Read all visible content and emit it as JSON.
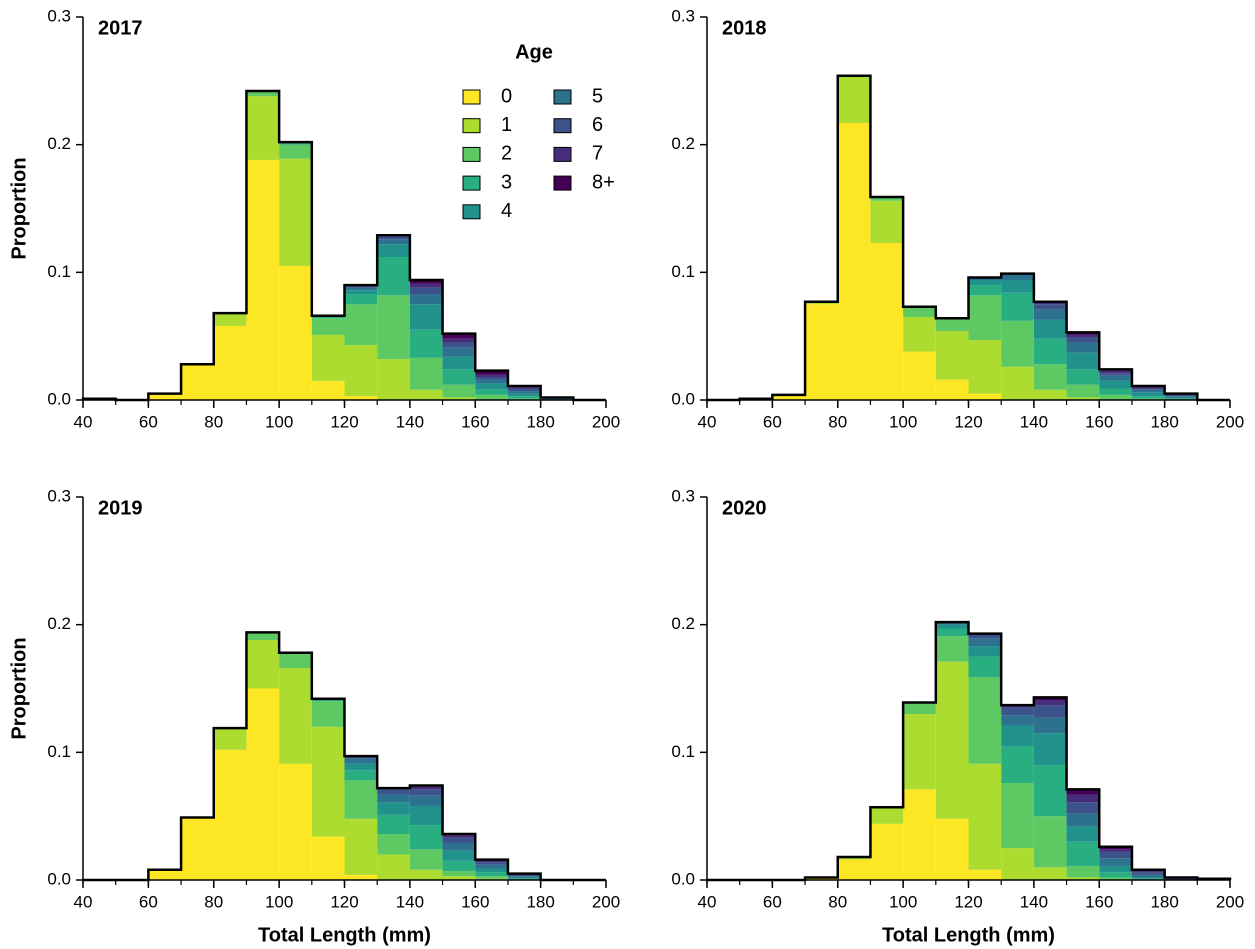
{
  "chart_data": [
    {
      "type": "histogram",
      "title": "2017",
      "ylabel": "Proportion",
      "legend": true,
      "legend_title": "Age",
      "bins": [
        40,
        50,
        60,
        70,
        80,
        90,
        100,
        110,
        120,
        130,
        140,
        150,
        160,
        170,
        180,
        190,
        200
      ],
      "xlim": [
        40,
        200
      ],
      "ylim": [
        0,
        0.3
      ],
      "xticks": [
        40,
        60,
        80,
        100,
        120,
        140,
        160,
        180,
        200
      ],
      "yticks": [
        {
          "value": 0,
          "label": "0.0"
        },
        0.1,
        0.2,
        0.3
      ],
      "series": [
        {
          "name": "0",
          "color": "#fde725",
          "values": [
            0.001,
            0,
            0.005,
            0.028,
            0.058,
            0.188,
            0.105,
            0.015,
            0.003,
            0,
            0,
            0,
            0,
            0,
            0,
            0
          ]
        },
        {
          "name": "1",
          "color": "#addc30",
          "values": [
            0,
            0,
            0,
            0,
            0.01,
            0.05,
            0.084,
            0.036,
            0.04,
            0.032,
            0.008,
            0.002,
            0,
            0,
            0,
            0
          ]
        },
        {
          "name": "2",
          "color": "#5ec962",
          "values": [
            0,
            0,
            0,
            0,
            0,
            0.004,
            0.011,
            0.013,
            0.032,
            0.05,
            0.025,
            0.01,
            0.004,
            0.001,
            0,
            0
          ]
        },
        {
          "name": "3",
          "color": "#28ae80",
          "values": [
            0,
            0,
            0,
            0,
            0,
            0,
            0.002,
            0.002,
            0.008,
            0.03,
            0.022,
            0.012,
            0.004,
            0.002,
            0,
            0
          ]
        },
        {
          "name": "4",
          "color": "#21918c",
          "values": [
            0,
            0,
            0,
            0,
            0,
            0,
            0,
            0,
            0.003,
            0.01,
            0.02,
            0.01,
            0.005,
            0.002,
            0,
            0
          ]
        },
        {
          "name": "5",
          "color": "#2c728e",
          "values": [
            0,
            0,
            0,
            0,
            0,
            0,
            0,
            0,
            0.002,
            0.004,
            0.008,
            0.007,
            0.003,
            0.002,
            0.001,
            0
          ]
        },
        {
          "name": "6",
          "color": "#3b528b",
          "values": [
            0,
            0,
            0,
            0,
            0,
            0,
            0,
            0,
            0.002,
            0.002,
            0.005,
            0.004,
            0.002,
            0.002,
            0.001,
            0
          ]
        },
        {
          "name": "7",
          "color": "#472d7b",
          "values": [
            0,
            0,
            0,
            0,
            0,
            0,
            0,
            0,
            0,
            0.001,
            0.003,
            0.003,
            0.002,
            0.001,
            0,
            0
          ]
        },
        {
          "name": "8+",
          "color": "#440154",
          "values": [
            0,
            0,
            0,
            0,
            0,
            0,
            0,
            0,
            0,
            0,
            0.003,
            0.004,
            0.003,
            0.001,
            0,
            0
          ]
        }
      ]
    },
    {
      "type": "histogram",
      "title": "2018",
      "legend": false,
      "bins": [
        40,
        50,
        60,
        70,
        80,
        90,
        100,
        110,
        120,
        130,
        140,
        150,
        160,
        170,
        180,
        190,
        200
      ],
      "xlim": [
        40,
        200
      ],
      "ylim": [
        0,
        0.3
      ],
      "xticks": [
        40,
        60,
        80,
        100,
        120,
        140,
        160,
        180,
        200
      ],
      "yticks": [
        {
          "value": 0,
          "label": "0.0"
        },
        0.1,
        0.2,
        0.3
      ],
      "series": [
        {
          "name": "0",
          "color": "#fde725",
          "values": [
            0,
            0.001,
            0.004,
            0.075,
            0.217,
            0.123,
            0.038,
            0.016,
            0.005,
            0,
            0,
            0,
            0,
            0,
            0,
            0
          ]
        },
        {
          "name": "1",
          "color": "#addc30",
          "values": [
            0,
            0,
            0,
            0.002,
            0.037,
            0.033,
            0.027,
            0.038,
            0.042,
            0.026,
            0.008,
            0.002,
            0,
            0,
            0,
            0
          ]
        },
        {
          "name": "2",
          "color": "#5ec962",
          "values": [
            0,
            0,
            0,
            0,
            0,
            0.003,
            0.008,
            0.01,
            0.035,
            0.036,
            0.02,
            0.01,
            0.004,
            0.001,
            0,
            0
          ]
        },
        {
          "name": "3",
          "color": "#28ae80",
          "values": [
            0,
            0,
            0,
            0,
            0,
            0,
            0,
            0,
            0.008,
            0.022,
            0.02,
            0.012,
            0.005,
            0.002,
            0.001,
            0
          ]
        },
        {
          "name": "4",
          "color": "#21918c",
          "values": [
            0,
            0,
            0,
            0,
            0,
            0,
            0,
            0,
            0.004,
            0.01,
            0.015,
            0.013,
            0.006,
            0.003,
            0.001,
            0
          ]
        },
        {
          "name": "5",
          "color": "#2c728e",
          "values": [
            0,
            0,
            0,
            0,
            0,
            0,
            0,
            0,
            0.002,
            0.004,
            0.008,
            0.008,
            0.004,
            0.002,
            0.001,
            0
          ]
        },
        {
          "name": "6",
          "color": "#3b528b",
          "values": [
            0,
            0,
            0,
            0,
            0,
            0,
            0,
            0,
            0,
            0.001,
            0.004,
            0.004,
            0.002,
            0.001,
            0.001,
            0
          ]
        },
        {
          "name": "7",
          "color": "#472d7b",
          "values": [
            0,
            0,
            0,
            0,
            0,
            0,
            0,
            0,
            0,
            0,
            0.001,
            0.002,
            0.002,
            0.001,
            0.001,
            0
          ]
        },
        {
          "name": "8+",
          "color": "#440154",
          "values": [
            0,
            0,
            0,
            0,
            0,
            0,
            0,
            0,
            0,
            0,
            0.001,
            0.002,
            0.001,
            0.001,
            0,
            0
          ]
        }
      ]
    },
    {
      "type": "histogram",
      "title": "2019",
      "ylabel": "Proportion",
      "xlabel": "Total Length (mm)",
      "legend": false,
      "bins": [
        40,
        50,
        60,
        70,
        80,
        90,
        100,
        110,
        120,
        130,
        140,
        150,
        160,
        170,
        180,
        190,
        200
      ],
      "xlim": [
        40,
        200
      ],
      "ylim": [
        0,
        0.3
      ],
      "xticks": [
        40,
        60,
        80,
        100,
        120,
        140,
        160,
        180,
        200
      ],
      "yticks": [
        {
          "value": 0,
          "label": "0.0"
        },
        0.1,
        0.2,
        0.3
      ],
      "series": [
        {
          "name": "0",
          "color": "#fde725",
          "values": [
            0,
            0,
            0.008,
            0.049,
            0.102,
            0.15,
            0.091,
            0.034,
            0.004,
            0,
            0,
            0,
            0,
            0,
            0,
            0
          ]
        },
        {
          "name": "1",
          "color": "#addc30",
          "values": [
            0,
            0,
            0,
            0,
            0.017,
            0.038,
            0.075,
            0.086,
            0.044,
            0.02,
            0.008,
            0.003,
            0.001,
            0,
            0,
            0
          ]
        },
        {
          "name": "2",
          "color": "#5ec962",
          "values": [
            0,
            0,
            0,
            0,
            0,
            0.006,
            0.012,
            0.02,
            0.03,
            0.016,
            0.016,
            0.004,
            0.002,
            0,
            0,
            0
          ]
        },
        {
          "name": "3",
          "color": "#28ae80",
          "values": [
            0,
            0,
            0,
            0,
            0,
            0,
            0,
            0.002,
            0.008,
            0.015,
            0.019,
            0.008,
            0.003,
            0.001,
            0,
            0
          ]
        },
        {
          "name": "4",
          "color": "#21918c",
          "values": [
            0,
            0,
            0,
            0,
            0,
            0,
            0,
            0,
            0.005,
            0.01,
            0.015,
            0.008,
            0.003,
            0.001,
            0,
            0
          ]
        },
        {
          "name": "5",
          "color": "#2c728e",
          "values": [
            0,
            0,
            0,
            0,
            0,
            0,
            0,
            0,
            0.004,
            0.006,
            0.008,
            0.006,
            0.003,
            0.001,
            0,
            0
          ]
        },
        {
          "name": "6",
          "color": "#3b528b",
          "values": [
            0,
            0,
            0,
            0,
            0,
            0,
            0,
            0,
            0.002,
            0.004,
            0.005,
            0.004,
            0.002,
            0.001,
            0,
            0
          ]
        },
        {
          "name": "7",
          "color": "#472d7b",
          "values": [
            0,
            0,
            0,
            0,
            0,
            0,
            0,
            0,
            0,
            0.001,
            0.002,
            0.002,
            0.001,
            0.001,
            0,
            0
          ]
        },
        {
          "name": "8+",
          "color": "#440154",
          "values": [
            0,
            0,
            0,
            0,
            0,
            0,
            0,
            0,
            0,
            0,
            0.001,
            0.001,
            0.001,
            0,
            0,
            0
          ]
        }
      ]
    },
    {
      "type": "histogram",
      "title": "2020",
      "xlabel": "Total Length (mm)",
      "legend": false,
      "bins": [
        40,
        50,
        60,
        70,
        80,
        90,
        100,
        110,
        120,
        130,
        140,
        150,
        160,
        170,
        180,
        190,
        200
      ],
      "xlim": [
        40,
        200
      ],
      "ylim": [
        0,
        0.3
      ],
      "xticks": [
        40,
        60,
        80,
        100,
        120,
        140,
        160,
        180,
        200
      ],
      "yticks": [
        {
          "value": 0,
          "label": "0.0"
        },
        0.1,
        0.2,
        0.3
      ],
      "series": [
        {
          "name": "0",
          "color": "#fde725",
          "values": [
            0,
            0,
            0,
            0.002,
            0.016,
            0.044,
            0.071,
            0.048,
            0.008,
            0,
            0,
            0,
            0,
            0,
            0,
            0
          ]
        },
        {
          "name": "1",
          "color": "#addc30",
          "values": [
            0,
            0,
            0,
            0,
            0.002,
            0.013,
            0.059,
            0.123,
            0.083,
            0.025,
            0.01,
            0.002,
            0,
            0,
            0,
            0
          ]
        },
        {
          "name": "2",
          "color": "#5ec962",
          "values": [
            0,
            0,
            0,
            0,
            0,
            0,
            0.009,
            0.02,
            0.068,
            0.051,
            0.04,
            0.009,
            0.002,
            0,
            0,
            0
          ]
        },
        {
          "name": "3",
          "color": "#28ae80",
          "values": [
            0,
            0,
            0,
            0,
            0,
            0,
            0,
            0.006,
            0.016,
            0.029,
            0.04,
            0.019,
            0.004,
            0.001,
            0,
            0
          ]
        },
        {
          "name": "4",
          "color": "#21918c",
          "values": [
            0,
            0,
            0,
            0,
            0,
            0,
            0,
            0.003,
            0.008,
            0.016,
            0.025,
            0.012,
            0.005,
            0.001,
            0,
            0
          ]
        },
        {
          "name": "5",
          "color": "#2c728e",
          "values": [
            0,
            0,
            0,
            0,
            0,
            0,
            0,
            0.002,
            0.006,
            0.008,
            0.012,
            0.01,
            0.006,
            0.002,
            0,
            0
          ]
        },
        {
          "name": "6",
          "color": "#3b528b",
          "values": [
            0,
            0,
            0,
            0,
            0,
            0,
            0,
            0,
            0.004,
            0.006,
            0.01,
            0.009,
            0.005,
            0.002,
            0.001,
            0
          ]
        },
        {
          "name": "7",
          "color": "#472d7b",
          "values": [
            0,
            0,
            0,
            0,
            0,
            0,
            0,
            0,
            0,
            0.002,
            0.004,
            0.006,
            0.002,
            0.001,
            0,
            0
          ]
        },
        {
          "name": "8+",
          "color": "#440154",
          "values": [
            0,
            0,
            0,
            0,
            0,
            0,
            0,
            0,
            0,
            0,
            0.002,
            0.004,
            0.002,
            0.001,
            0.001,
            0.001
          ]
        }
      ]
    }
  ]
}
